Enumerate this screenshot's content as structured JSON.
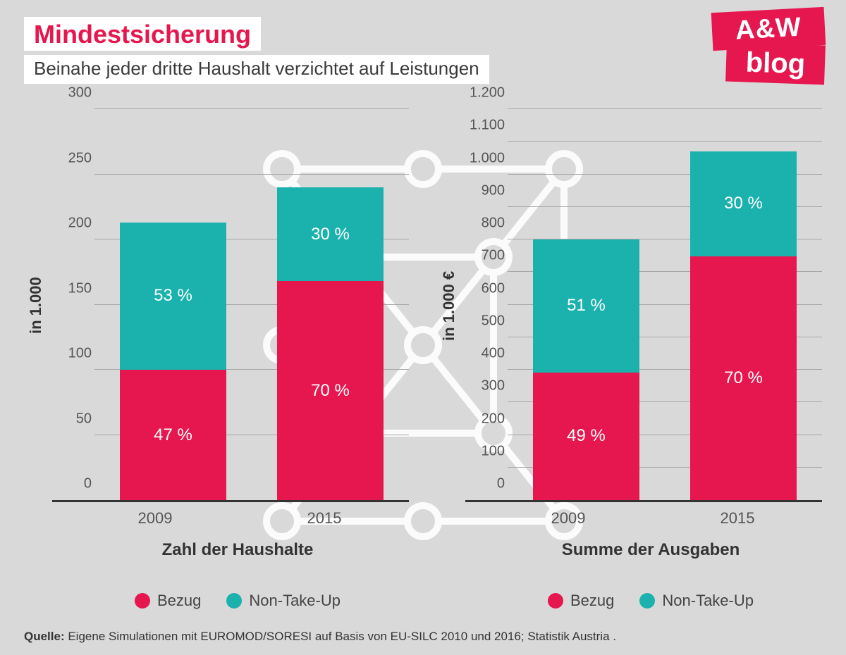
{
  "header": {
    "title": "Mindestsicherung",
    "subtitle": "Beinahe jeder dritte Haushalt verzichtet auf Leistungen",
    "title_color": "#e5174e"
  },
  "logo": {
    "top": "A&W",
    "bottom": "blog",
    "bg": "#e5174e"
  },
  "colors": {
    "bezug": "#e5174e",
    "non_take_up": "#1bb2ad",
    "grid": "#a6a6a6",
    "axis": "#333333",
    "bg": "#d9d9d9",
    "lattice": "#ffffff"
  },
  "charts": [
    {
      "id": "households",
      "y_label": "in 1.000",
      "x_title": "Zahl der Haushalte",
      "ymin": 0,
      "ymax": 300,
      "ystep": 50,
      "yticks": [
        "0",
        "50",
        "100",
        "150",
        "200",
        "250",
        "300"
      ],
      "categories": [
        "2009",
        "2015"
      ],
      "bars": [
        {
          "total": 213,
          "segments": [
            {
              "key": "bezug",
              "value": 100,
              "label": "47 %"
            },
            {
              "key": "non_take_up",
              "value": 113,
              "label": "53 %"
            }
          ]
        },
        {
          "total": 240,
          "segments": [
            {
              "key": "bezug",
              "value": 168,
              "label": "70 %"
            },
            {
              "key": "non_take_up",
              "value": 72,
              "label": "30 %"
            }
          ]
        }
      ],
      "bar_width_pct": 34
    },
    {
      "id": "expenditure",
      "y_label": "in 1.000 €",
      "x_title": "Summe der Ausgaben",
      "ymin": 0,
      "ymax": 1200,
      "ystep": 100,
      "yticks": [
        "0",
        "100",
        "200",
        "300",
        "400",
        "500",
        "600",
        "700",
        "800",
        "900",
        "1.000",
        "1.100",
        "1.200"
      ],
      "categories": [
        "2009",
        "2015"
      ],
      "bars": [
        {
          "total": 800,
          "segments": [
            {
              "key": "bezug",
              "value": 392,
              "label": "49 %"
            },
            {
              "key": "non_take_up",
              "value": 408,
              "label": "51 %"
            }
          ]
        },
        {
          "total": 1070,
          "segments": [
            {
              "key": "bezug",
              "value": 749,
              "label": "70 %"
            },
            {
              "key": "non_take_up",
              "value": 321,
              "label": "30 %"
            }
          ]
        }
      ],
      "bar_width_pct": 34
    }
  ],
  "legend": [
    {
      "key": "bezug",
      "label": "Bezug"
    },
    {
      "key": "non_take_up",
      "label": "Non-Take-Up"
    }
  ],
  "footer": {
    "prefix": "Quelle:",
    "text": " Eigene Simulationen mit EUROMOD/SORESI auf Basis von EU-SILC 2010 und 2016; Statistik Austria ."
  }
}
